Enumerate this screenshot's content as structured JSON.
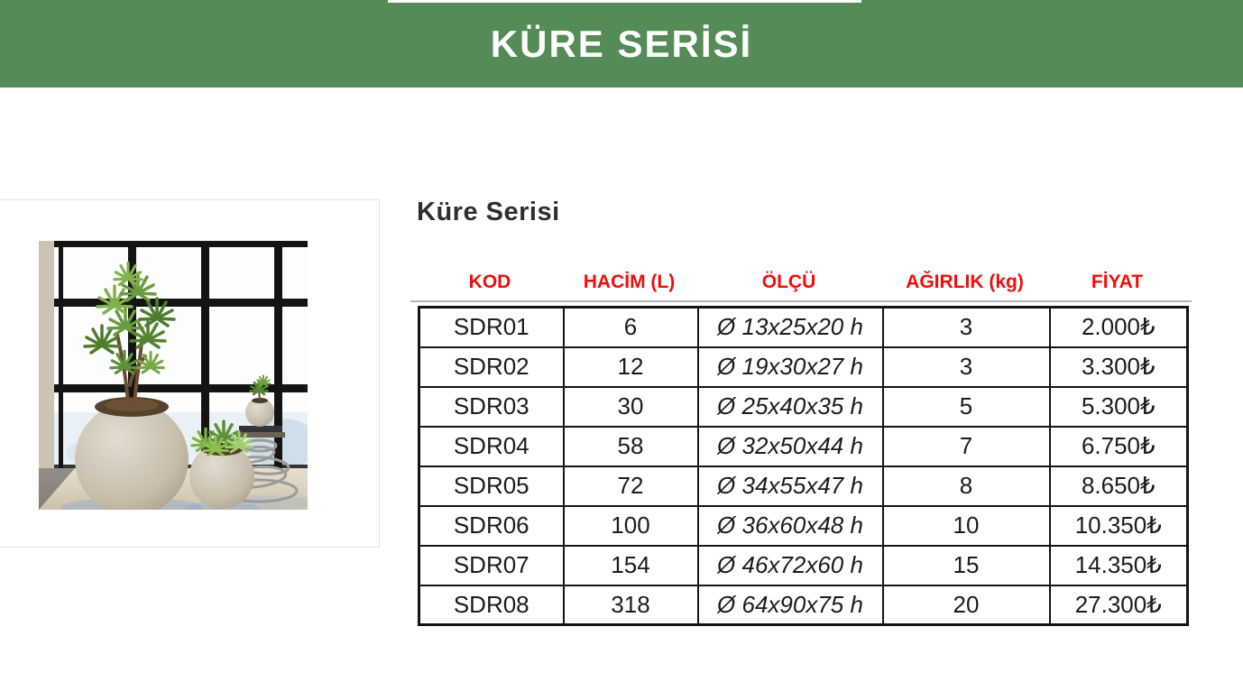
{
  "banner": {
    "title": "KÜRE SERİSİ"
  },
  "section": {
    "title": "Küre Serisi"
  },
  "image": {
    "name": "sphere-concrete-planters-by-window-photo"
  },
  "colors": {
    "banner_green": "#548b57",
    "header_red": "#f10d09",
    "table_border": "#141414"
  },
  "table": {
    "columns": [
      {
        "label": "KOD"
      },
      {
        "label": "HACİM (L)"
      },
      {
        "label": "ÖLÇÜ"
      },
      {
        "label": "AĞIRLIK (kg)"
      },
      {
        "label": "FİYAT"
      }
    ],
    "rows": [
      [
        "SDR01",
        "6",
        "Ø 13x25x20 h",
        "3",
        "2.000₺"
      ],
      [
        "SDR02",
        "12",
        "Ø 19x30x27 h",
        "3",
        "3.300₺"
      ],
      [
        "SDR03",
        "30",
        "Ø 25x40x35 h",
        "5",
        "5.300₺"
      ],
      [
        "SDR04",
        "58",
        "Ø 32x50x44 h",
        "7",
        "6.750₺"
      ],
      [
        "SDR05",
        "72",
        "Ø 34x55x47 h",
        "8",
        "8.650₺"
      ],
      [
        "SDR06",
        "100",
        "Ø 36x60x48 h",
        "10",
        "10.350₺"
      ],
      [
        "SDR07",
        "154",
        "Ø 46x72x60 h",
        "15",
        "14.350₺"
      ],
      [
        "SDR08",
        "318",
        "Ø 64x90x75 h",
        "20",
        "27.300₺"
      ]
    ]
  }
}
